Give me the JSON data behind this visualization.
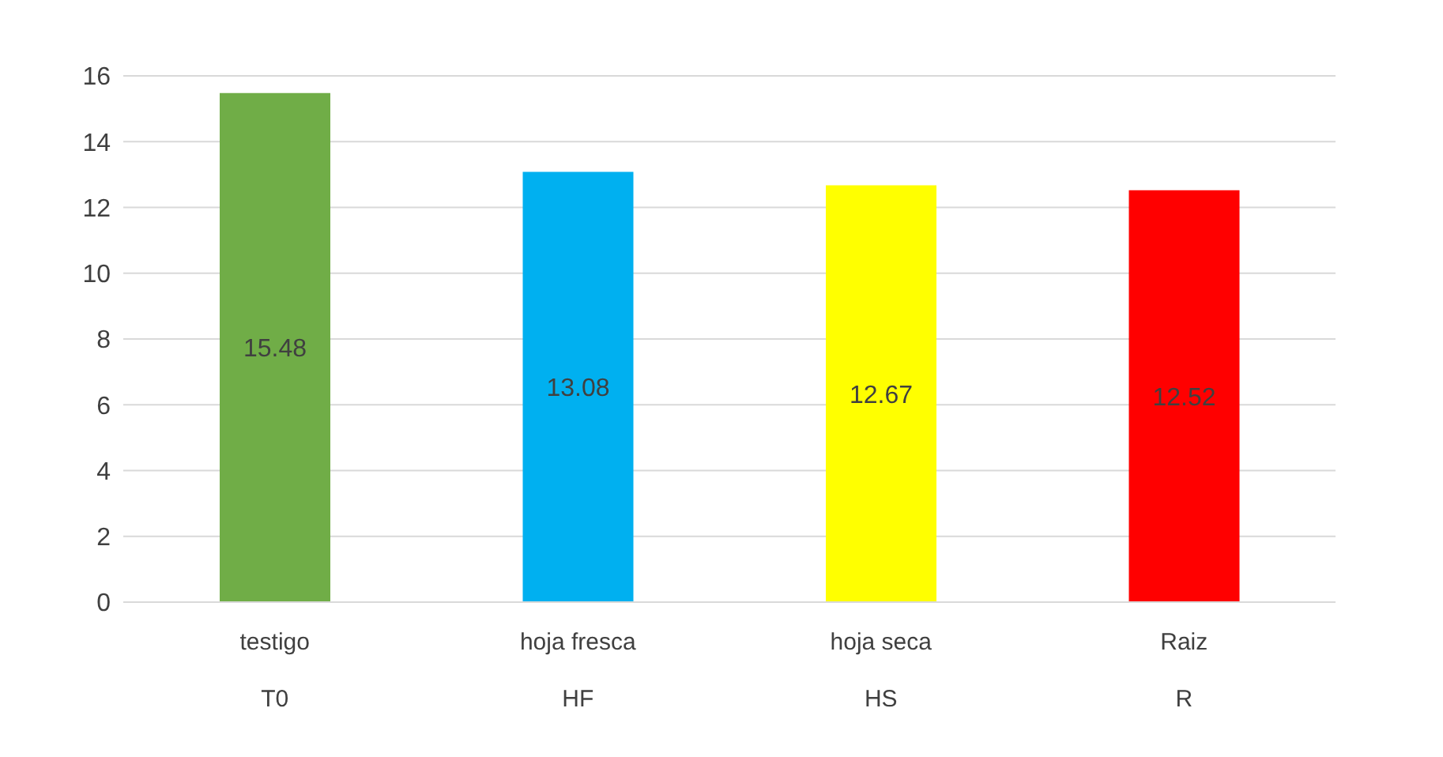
{
  "chart_data": {
    "type": "bar",
    "categories": [
      "testigo\nT0",
      "hoja fresca\nHF",
      "hoja seca\nHS",
      "Raiz\nR"
    ],
    "values": [
      15.48,
      13.08,
      12.67,
      12.52
    ],
    "colors": [
      "#70ad47",
      "#00b0f0",
      "#ffff00",
      "#ff0000"
    ],
    "ylim": [
      0,
      16
    ],
    "yticks": [
      0,
      2,
      4,
      6,
      8,
      10,
      12,
      14,
      16
    ],
    "grid": "y",
    "data_labels": true
  }
}
